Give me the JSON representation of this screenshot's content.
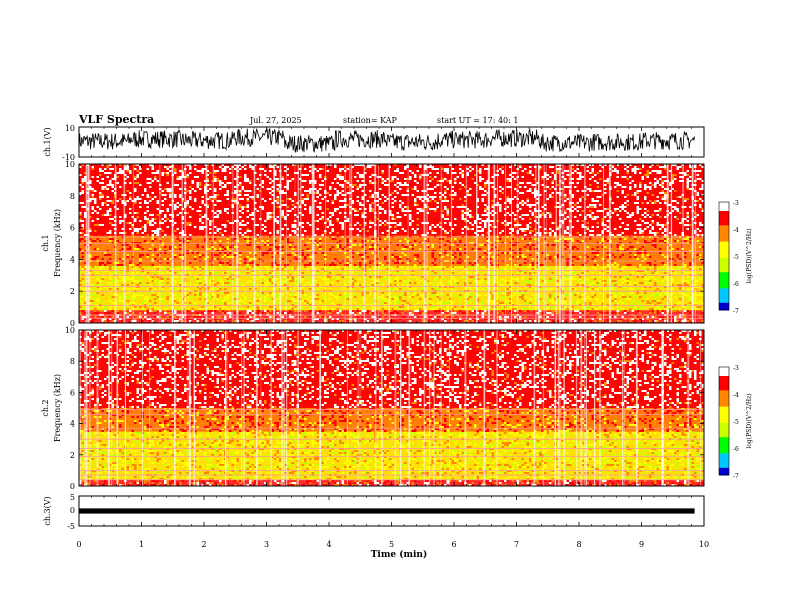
{
  "header": {
    "title": "VLF Spectra",
    "date": "Jul. 27, 2025",
    "station": "station= KAP",
    "start": "start  UT =   17: 40: 1"
  },
  "chart_data": [
    {
      "type": "line",
      "name": "ch1-waveform",
      "ylabel": "ch.1(V)",
      "ylim": [
        -10,
        10
      ],
      "y_ticks": [
        "10",
        "-10"
      ],
      "x_range_min": [
        0,
        9.85
      ],
      "description_values": "noisy broadband voltage trace, mostly between -8 and 8 V",
      "mean_level_v": [
        0.5,
        2,
        1,
        3,
        -1,
        2,
        0,
        1.5,
        2.5,
        -0.5,
        0,
        1
      ]
    },
    {
      "type": "heatmap",
      "name": "ch1-spectrogram",
      "ylabel": "ch.1 Frequency (kHz)",
      "ylim": [
        0,
        10
      ],
      "y_ticks": [
        "0",
        "2",
        "4",
        "6",
        "8",
        "10"
      ],
      "colorbar": {
        "label": "log(PSD)(V^2/Hz)",
        "range": [
          -7,
          -3
        ],
        "ticks": [
          "-3",
          "-4",
          "-5",
          "-6",
          "-7"
        ]
      },
      "bands_khz": [
        {
          "from": 0.8,
          "to": 3.6,
          "log_psd": -4.8
        },
        {
          "from": 3.6,
          "to": 5.5,
          "log_psd": -4.0
        },
        {
          "from": 5.5,
          "to": 10,
          "log_psd": -3.3
        }
      ],
      "tonal_lines_khz": [
        0.3,
        0.5,
        1.1,
        2.0,
        2.3,
        3.0,
        3.3,
        3.9,
        4.5,
        5.0,
        5.4
      ]
    },
    {
      "type": "heatmap",
      "name": "ch2-spectrogram",
      "ylabel": "ch.2 Frequency (kHz)",
      "ylim": [
        0,
        10
      ],
      "y_ticks": [
        "0",
        "2",
        "4",
        "6",
        "8",
        "10"
      ],
      "colorbar": {
        "label": "log(PSD)(V^2/Hz)",
        "range": [
          -7,
          -3
        ],
        "ticks": [
          "-3",
          "-4",
          "-5",
          "-6",
          "-7"
        ]
      },
      "bands_khz": [
        {
          "from": 0.4,
          "to": 3.5,
          "log_psd": -4.8
        },
        {
          "from": 3.5,
          "to": 5.0,
          "log_psd": -4.0
        },
        {
          "from": 5.0,
          "to": 10,
          "log_psd": -3.3
        }
      ],
      "tonal_lines_khz": [
        0.4,
        0.7,
        1.0,
        1.9,
        2.4,
        3.0,
        3.7,
        4.6,
        4.9
      ]
    },
    {
      "type": "line",
      "name": "ch3-waveform",
      "ylabel": "ch.3(V)",
      "ylim": [
        -5,
        5
      ],
      "y_ticks": [
        "5",
        "0",
        "-5"
      ],
      "level_v": [
        -0.2,
        0.2
      ],
      "x_range_min": [
        0,
        9.85
      ]
    }
  ],
  "x_axis": {
    "label": "Time (min)",
    "range_min": [
      0,
      10
    ],
    "ticks": [
      "0",
      "1",
      "2",
      "3",
      "4",
      "5",
      "6",
      "7",
      "8",
      "9",
      "10"
    ]
  },
  "colors": {
    "psd_scale": [
      "#0000cc",
      "#00c8ff",
      "#00ff00",
      "#ccff00",
      "#ffff00",
      "#ff8800",
      "#ff0000",
      "#ffffff"
    ]
  }
}
